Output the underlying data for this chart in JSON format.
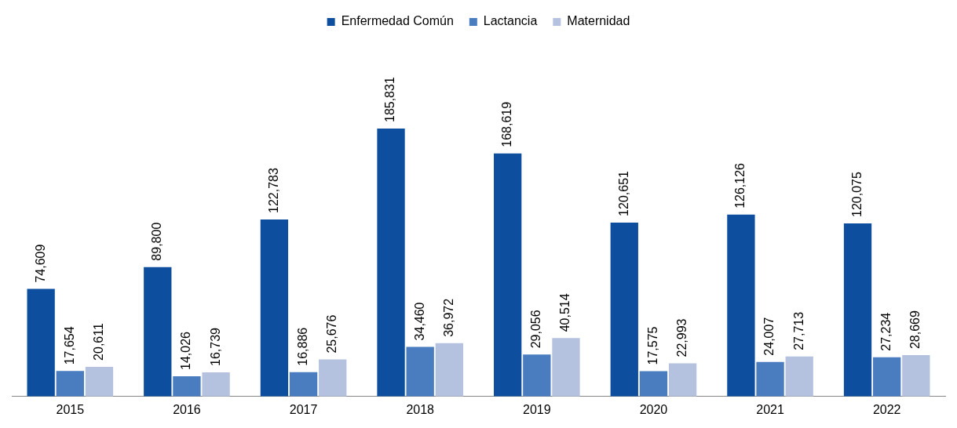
{
  "chart_data": {
    "type": "bar",
    "categories": [
      "2015",
      "2016",
      "2017",
      "2018",
      "2019",
      "2020",
      "2021",
      "2022"
    ],
    "series": [
      {
        "name": "Enfermedad Común",
        "color": "#0d4f9e",
        "values": [
          74609,
          89800,
          122783,
          185831,
          168619,
          120651,
          126126,
          120075
        ],
        "value_labels": [
          "74,609",
          "89,800",
          "122,783",
          "185,831",
          "168,619",
          "120,651",
          "126,126",
          "120,075"
        ]
      },
      {
        "name": "Lactancia",
        "color": "#4a7cc0",
        "values": [
          17654,
          14026,
          16886,
          34460,
          29056,
          17575,
          24007,
          27234
        ],
        "value_labels": [
          "17,654",
          "14,026",
          "16,886",
          "34,460",
          "29,056",
          "17,575",
          "24,007",
          "27,234"
        ]
      },
      {
        "name": "Maternidad",
        "color": "#b4c2e0",
        "values": [
          20611,
          16739,
          25676,
          36972,
          40514,
          22993,
          27713,
          28669
        ],
        "value_labels": [
          "20,611",
          "16,739",
          "25,676",
          "36,972",
          "40,514",
          "22,993",
          "27,713",
          "28,669"
        ]
      }
    ],
    "legend": "top"
  }
}
